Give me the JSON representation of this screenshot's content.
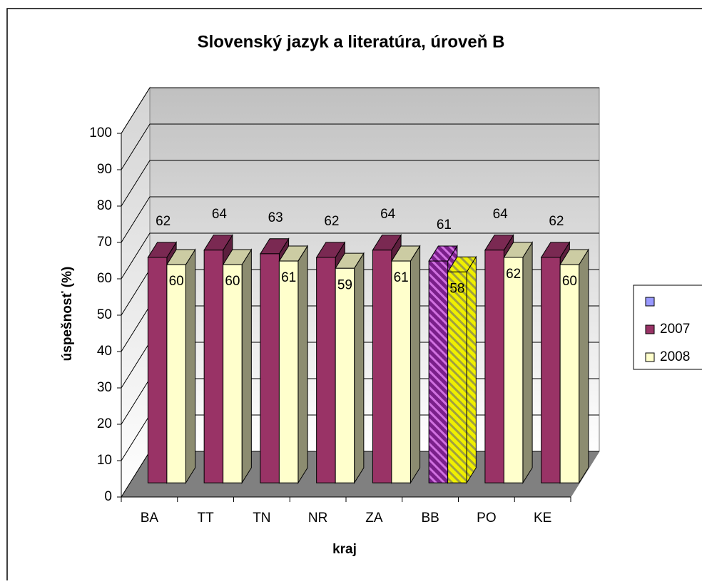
{
  "chart_data": {
    "type": "bar3d",
    "title": "Slovenský jazyk a literatúra, úroveň B",
    "x_label": "kraj",
    "y_label": "úspešnosť (%)",
    "categories": [
      "BA",
      "TT",
      "TN",
      "NR",
      "ZA",
      "BB",
      "PO",
      "KE"
    ],
    "series": [
      {
        "name": "2007",
        "color": "#993366",
        "values": [
          62,
          64,
          63,
          62,
          64,
          61,
          64,
          62
        ]
      },
      {
        "name": "2008",
        "color": "#ffffcc",
        "values": [
          60,
          60,
          61,
          59,
          61,
          58,
          62,
          60
        ]
      }
    ],
    "highlight_index": 5,
    "ylim": [
      0,
      100
    ],
    "yticks": [
      0,
      10,
      20,
      30,
      40,
      50,
      60,
      70,
      80,
      90,
      100
    ],
    "grid": true
  }
}
